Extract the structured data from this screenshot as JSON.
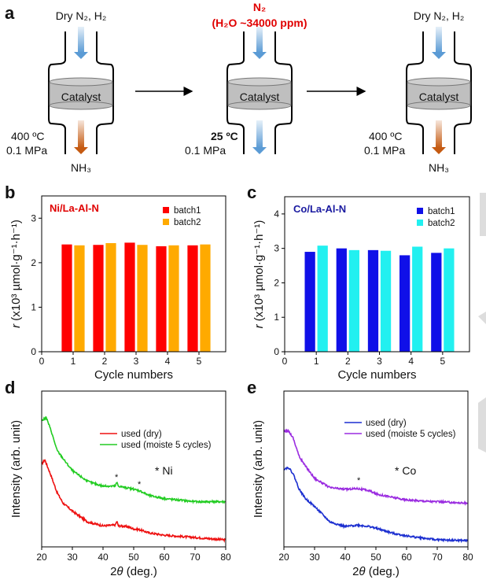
{
  "panel_labels": [
    "a",
    "b",
    "c",
    "d",
    "e"
  ],
  "panel_a": {
    "reactors": [
      {
        "inlet": "Dry N₂, H₂",
        "catalyst": "Catalyst",
        "temp": "400 ºC",
        "pressure": "0.1 MPa",
        "outlet": "NH₃"
      },
      {
        "inlet": "N₂",
        "inlet_note": "(H₂O ~34000 ppm)",
        "catalyst": "Catalyst",
        "temp": "25 ºC",
        "pressure": "0.1 MPa"
      },
      {
        "inlet": "Dry N₂, H₂",
        "catalyst": "Catalyst",
        "temp": "400 ºC",
        "pressure": "0.1 MPa",
        "outlet": "NH₃"
      }
    ],
    "colors": {
      "inlet_arrow": "#5b9bd5",
      "outlet_arrow": "#c55a11",
      "catalyst": "#bfbfbf",
      "note": "#e00000"
    }
  },
  "chart_data": [
    {
      "id": "b",
      "type": "bar",
      "title": "Ni/La-Al-N",
      "title_color": "#e00000",
      "categories": [
        1,
        2,
        3,
        4,
        5
      ],
      "series": [
        {
          "name": "batch1",
          "color": "#ff0000",
          "values": [
            2.41,
            2.4,
            2.45,
            2.37,
            2.39
          ]
        },
        {
          "name": "batch2",
          "color": "#ffaa00",
          "values": [
            2.39,
            2.44,
            2.4,
            2.39,
            2.41
          ]
        }
      ],
      "xlabel": "Cycle numbers",
      "ylabel_var": "r",
      "ylabel": " (x10³ µmol·g⁻¹·h⁻¹)",
      "xlim": [
        0,
        5.85
      ],
      "ylim": [
        0,
        3.5
      ],
      "xticks": [
        0,
        1,
        2,
        3,
        4,
        5
      ],
      "yticks": [
        0,
        1,
        2,
        3
      ],
      "legend": "top-right",
      "grid": false
    },
    {
      "id": "c",
      "type": "bar",
      "title": "Co/La-Al-N",
      "title_color": "#1a1aa0",
      "categories": [
        1,
        2,
        3,
        4,
        5
      ],
      "series": [
        {
          "name": "batch1",
          "color": "#1010e8",
          "values": [
            2.9,
            3.0,
            2.95,
            2.8,
            2.87
          ]
        },
        {
          "name": "batch2",
          "color": "#22f0f0",
          "values": [
            3.08,
            2.95,
            2.93,
            3.05,
            3.0
          ]
        }
      ],
      "xlabel": "Cycle numbers",
      "ylabel_var": "r",
      "ylabel": " (x10³ µmol·g⁻¹·h⁻¹)",
      "xlim": [
        0,
        5.85
      ],
      "ylim": [
        0,
        4.5
      ],
      "xticks": [
        0,
        1,
        2,
        3,
        4,
        5
      ],
      "yticks": [
        0,
        1,
        2,
        3,
        4
      ],
      "legend": "top-right",
      "grid": false
    },
    {
      "id": "d",
      "type": "line",
      "series": [
        {
          "name": "used (dry)",
          "color": "#ee1111",
          "x": [
            20,
            21,
            23,
            25,
            27,
            30,
            35,
            40,
            44,
            44.5,
            45,
            48,
            50,
            52,
            55,
            60,
            70,
            80
          ],
          "y": [
            0.53,
            0.56,
            0.46,
            0.35,
            0.28,
            0.23,
            0.16,
            0.135,
            0.14,
            0.165,
            0.135,
            0.13,
            0.115,
            0.11,
            0.09,
            0.075,
            0.06,
            0.045
          ]
        },
        {
          "name": "used (moiste 5 cycles)",
          "color": "#22cc22",
          "x": [
            20,
            21.5,
            23,
            25,
            28,
            30,
            35,
            40,
            44,
            44.5,
            45,
            50,
            52,
            55,
            60,
            70,
            80
          ],
          "y": [
            0.81,
            0.83,
            0.75,
            0.62,
            0.54,
            0.49,
            0.42,
            0.39,
            0.39,
            0.415,
            0.39,
            0.37,
            0.36,
            0.33,
            0.31,
            0.29,
            0.29
          ]
        }
      ],
      "annotations": [
        "*",
        "*",
        "* Ni"
      ],
      "xlabel_pre": "2",
      "xlabel_var": "θ",
      "xlabel": " (deg.)",
      "ylabel": "Intensity (arb. unit)",
      "xlim": [
        20,
        80
      ],
      "ylim": [
        0,
        1
      ],
      "xticks": [
        20,
        30,
        40,
        50,
        60,
        70,
        80
      ],
      "legend": "upper-middle",
      "grid": false
    },
    {
      "id": "e",
      "type": "line",
      "series": [
        {
          "name": "used (dry)",
          "color": "#1c2fd0",
          "x": [
            20,
            21.5,
            23,
            25,
            27,
            30,
            35,
            40,
            44,
            48,
            50,
            55,
            60,
            70,
            80
          ],
          "y": [
            0.5,
            0.51,
            0.47,
            0.37,
            0.31,
            0.26,
            0.16,
            0.13,
            0.14,
            0.13,
            0.12,
            0.09,
            0.07,
            0.045,
            0.04
          ]
        },
        {
          "name": "used (moiste 5 cycles)",
          "color": "#9a2be0",
          "x": [
            20,
            21.5,
            23,
            25,
            27,
            30,
            35,
            40,
            44,
            48,
            50,
            60,
            70,
            80
          ],
          "y": [
            0.74,
            0.745,
            0.7,
            0.58,
            0.52,
            0.44,
            0.38,
            0.37,
            0.375,
            0.36,
            0.34,
            0.3,
            0.29,
            0.28
          ]
        }
      ],
      "annotations": [
        "*",
        "* Co"
      ],
      "xlabel_pre": "2",
      "xlabel_var": "θ",
      "xlabel": " (deg.)",
      "ylabel": "Intensity (arb. unit)",
      "xlim": [
        20,
        80
      ],
      "ylim": [
        0,
        1
      ],
      "xticks": [
        20,
        30,
        40,
        50,
        60,
        70,
        80
      ],
      "legend": "upper-middle",
      "grid": false
    }
  ]
}
